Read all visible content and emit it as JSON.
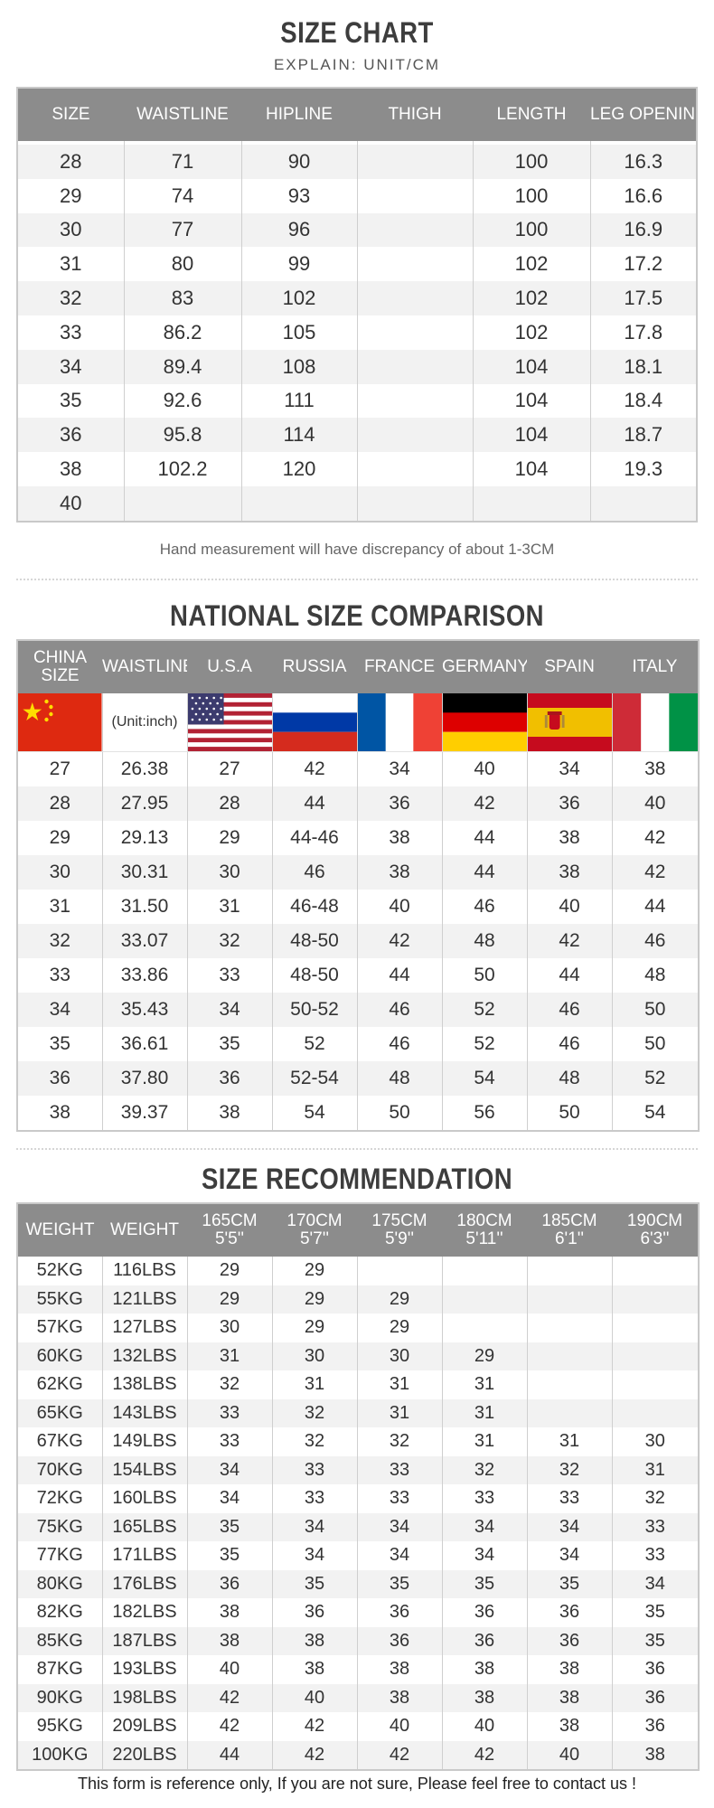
{
  "size_chart": {
    "title": "SIZE CHART",
    "subtitle": "EXPLAIN: UNIT/CM",
    "headers": [
      "SIZE",
      "WAISTLINE",
      "HIPLINE",
      "THIGH",
      "LENGTH",
      "LEG OPENING"
    ],
    "rows": [
      [
        "28",
        "71",
        "90",
        "",
        "100",
        "16.3"
      ],
      [
        "29",
        "74",
        "93",
        "",
        "100",
        "16.6"
      ],
      [
        "30",
        "77",
        "96",
        "",
        "100",
        "16.9"
      ],
      [
        "31",
        "80",
        "99",
        "",
        "102",
        "17.2"
      ],
      [
        "32",
        "83",
        "102",
        "",
        "102",
        "17.5"
      ],
      [
        "33",
        "86.2",
        "105",
        "",
        "102",
        "17.8"
      ],
      [
        "34",
        "89.4",
        "108",
        "",
        "104",
        "18.1"
      ],
      [
        "35",
        "92.6",
        "111",
        "",
        "104",
        "18.4"
      ],
      [
        "36",
        "95.8",
        "114",
        "",
        "104",
        "18.7"
      ],
      [
        "38",
        "102.2",
        "120",
        "",
        "104",
        "19.3"
      ],
      [
        "40",
        "",
        "",
        "",
        "",
        ""
      ]
    ],
    "note": "Hand measurement will have discrepancy of about 1-3CM"
  },
  "national": {
    "title": "NATIONAL SIZE COMPARISON",
    "headers": [
      "CHINA SIZE",
      "WAISTLINE",
      "U.S.A",
      "RUSSIA",
      "FRANCE",
      "GERMANY",
      "SPAIN",
      "ITALY"
    ],
    "unit_label": "(Unit:inch)",
    "flags": [
      "china-flag",
      "usa-flag",
      "russia-flag",
      "france-flag",
      "germany-flag",
      "spain-flag",
      "italy-flag"
    ],
    "rows": [
      [
        "27",
        "26.38",
        "27",
        "42",
        "34",
        "40",
        "34",
        "38"
      ],
      [
        "28",
        "27.95",
        "28",
        "44",
        "36",
        "42",
        "36",
        "40"
      ],
      [
        "29",
        "29.13",
        "29",
        "44-46",
        "38",
        "44",
        "38",
        "42"
      ],
      [
        "30",
        "30.31",
        "30",
        "46",
        "38",
        "44",
        "38",
        "42"
      ],
      [
        "31",
        "31.50",
        "31",
        "46-48",
        "40",
        "46",
        "40",
        "44"
      ],
      [
        "32",
        "33.07",
        "32",
        "48-50",
        "42",
        "48",
        "42",
        "46"
      ],
      [
        "33",
        "33.86",
        "33",
        "48-50",
        "44",
        "50",
        "44",
        "48"
      ],
      [
        "34",
        "35.43",
        "34",
        "50-52",
        "46",
        "52",
        "46",
        "50"
      ],
      [
        "35",
        "36.61",
        "35",
        "52",
        "46",
        "52",
        "46",
        "50"
      ],
      [
        "36",
        "37.80",
        "36",
        "52-54",
        "48",
        "54",
        "48",
        "52"
      ],
      [
        "38",
        "39.37",
        "38",
        "54",
        "50",
        "56",
        "50",
        "54"
      ]
    ]
  },
  "recommendation": {
    "title": "SIZE RECOMMENDATION",
    "headers": [
      "WEIGHT",
      "WEIGHT",
      "165CM 5'5''",
      "170CM 5'7''",
      "175CM 5'9''",
      "180CM 5'11''",
      "185CM 6'1''",
      "190CM 6'3''"
    ],
    "rows": [
      [
        "52KG",
        "116LBS",
        "29",
        "29",
        "",
        "",
        "",
        ""
      ],
      [
        "55KG",
        "121LBS",
        "29",
        "29",
        "29",
        "",
        "",
        ""
      ],
      [
        "57KG",
        "127LBS",
        "30",
        "29",
        "29",
        "",
        "",
        ""
      ],
      [
        "60KG",
        "132LBS",
        "31",
        "30",
        "30",
        "29",
        "",
        ""
      ],
      [
        "62KG",
        "138LBS",
        "32",
        "31",
        "31",
        "31",
        "",
        ""
      ],
      [
        "65KG",
        "143LBS",
        "33",
        "32",
        "31",
        "31",
        "",
        ""
      ],
      [
        "67KG",
        "149LBS",
        "33",
        "32",
        "32",
        "31",
        "31",
        "30"
      ],
      [
        "70KG",
        "154LBS",
        "34",
        "33",
        "33",
        "32",
        "32",
        "31"
      ],
      [
        "72KG",
        "160LBS",
        "34",
        "33",
        "33",
        "33",
        "33",
        "32"
      ],
      [
        "75KG",
        "165LBS",
        "35",
        "34",
        "34",
        "34",
        "34",
        "33"
      ],
      [
        "77KG",
        "171LBS",
        "35",
        "34",
        "34",
        "34",
        "34",
        "33"
      ],
      [
        "80KG",
        "176LBS",
        "36",
        "35",
        "35",
        "35",
        "35",
        "34"
      ],
      [
        "82KG",
        "182LBS",
        "38",
        "36",
        "36",
        "36",
        "36",
        "35"
      ],
      [
        "85KG",
        "187LBS",
        "38",
        "38",
        "36",
        "36",
        "36",
        "35"
      ],
      [
        "87KG",
        "193LBS",
        "40",
        "38",
        "38",
        "38",
        "38",
        "36"
      ],
      [
        "90KG",
        "198LBS",
        "42",
        "40",
        "38",
        "38",
        "38",
        "36"
      ],
      [
        "95KG",
        "209LBS",
        "42",
        "42",
        "40",
        "40",
        "38",
        "36"
      ],
      [
        "100KG",
        "220LBS",
        "44",
        "42",
        "42",
        "42",
        "40",
        "38"
      ]
    ]
  },
  "footer": "This form is reference only, If you are not sure, Please feel free to contact us !",
  "colors": {
    "header_bg": "#8c8c8c",
    "china_red": "#de2910",
    "usa_red": "#b22234",
    "russia_blue": "#0039a6",
    "france_blue": "#0055a4",
    "germany_gold": "#ffce00",
    "spain_yellow": "#f1bf00",
    "italy_green": "#009246"
  }
}
